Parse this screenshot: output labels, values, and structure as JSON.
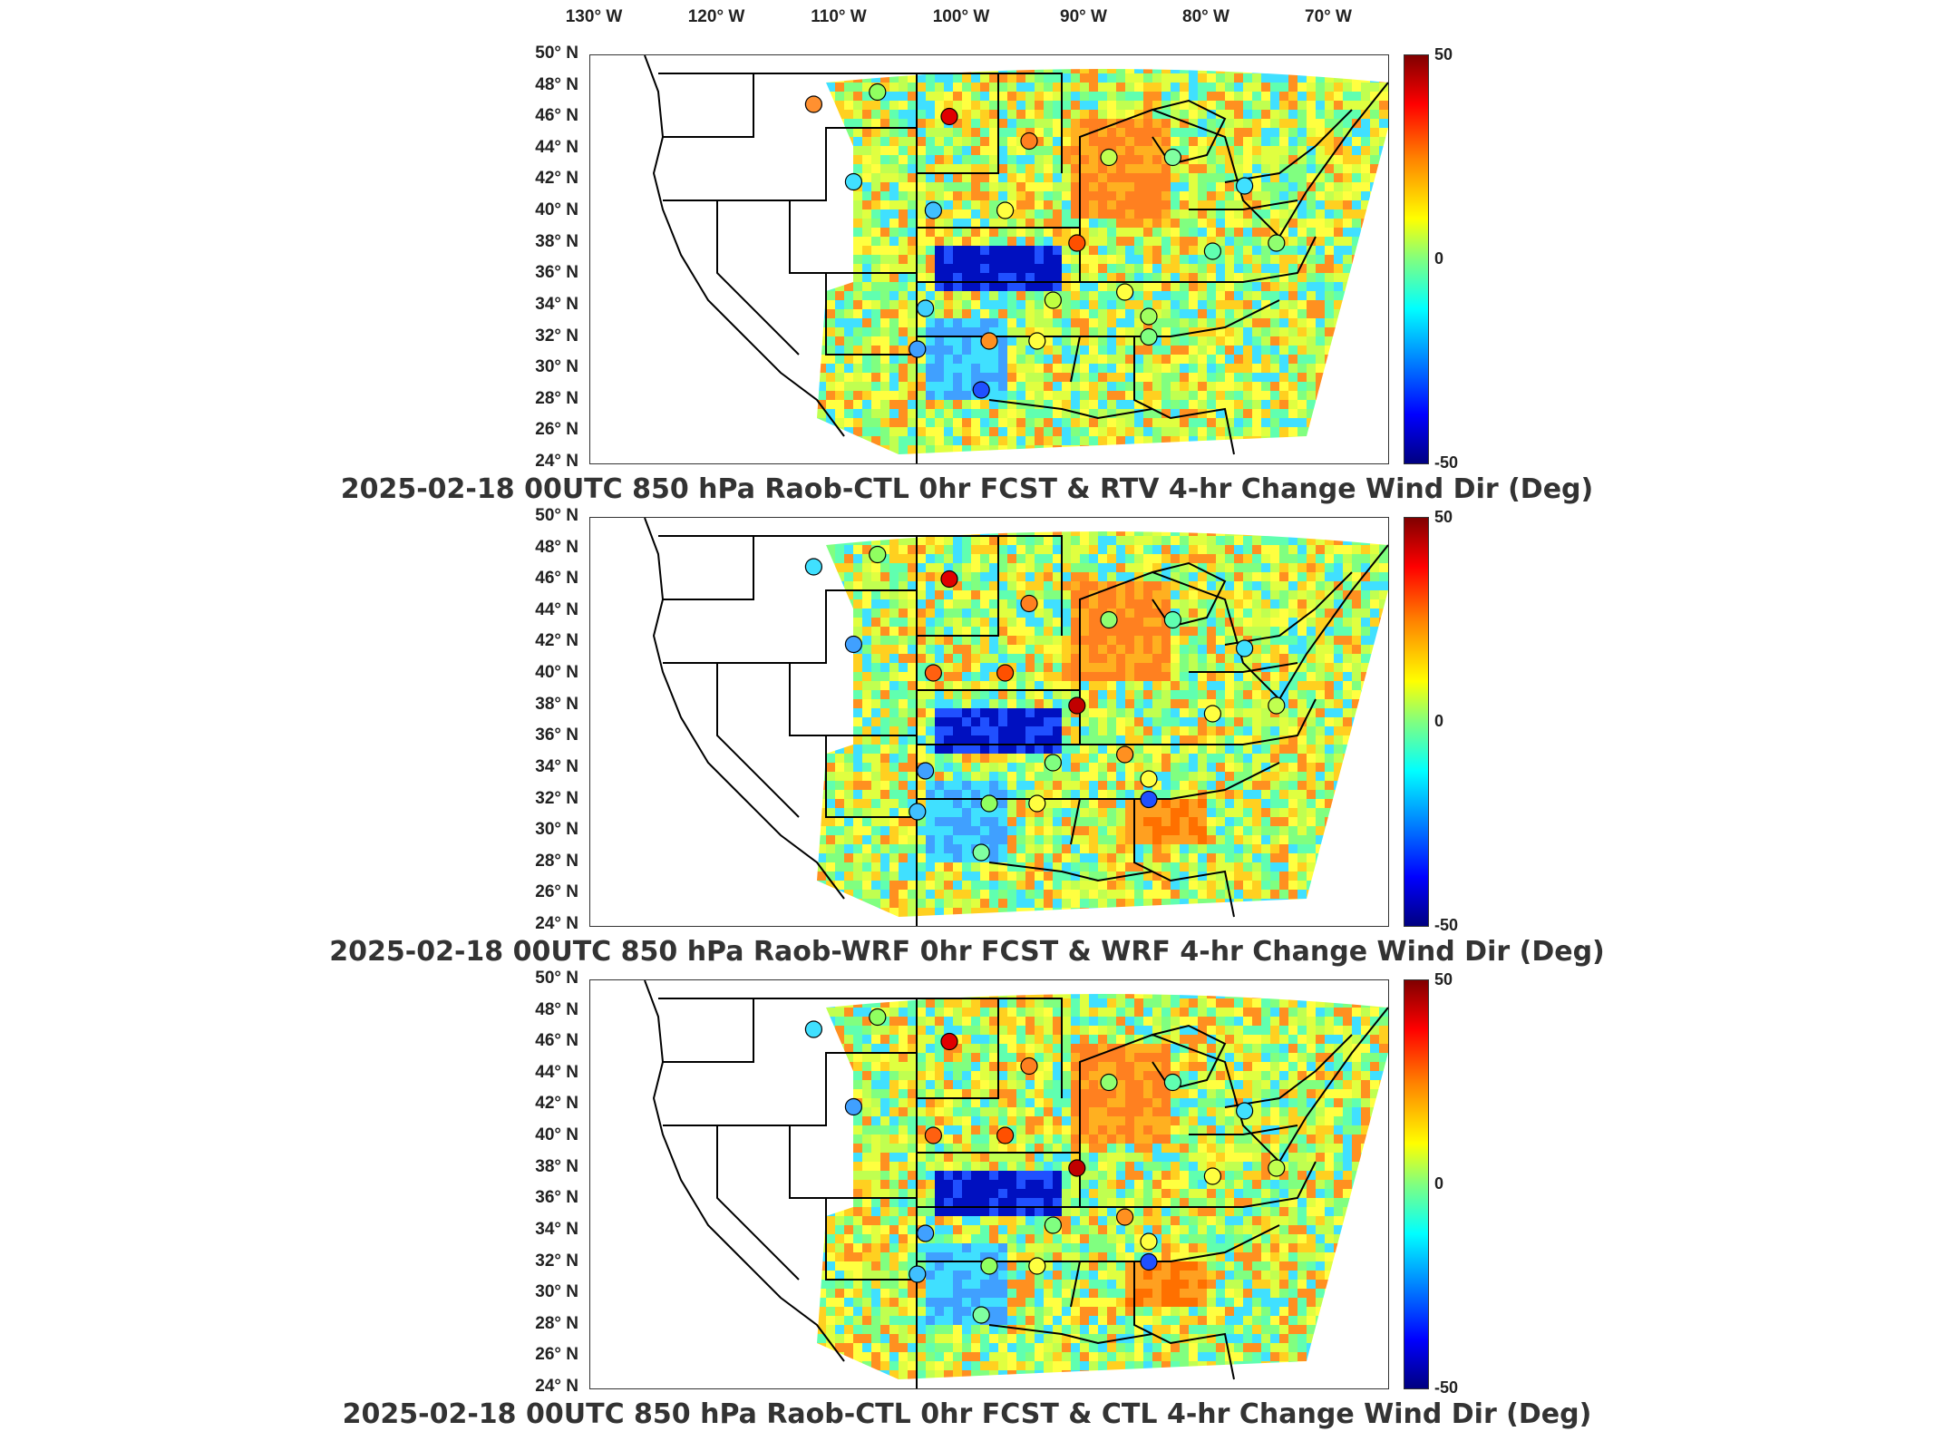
{
  "lon_labels": [
    "130° W",
    "120° W",
    "110° W",
    "100° W",
    "90° W",
    "80° W",
    "70° W"
  ],
  "lat_labels": [
    "50° N",
    "48° N",
    "46° N",
    "44° N",
    "42° N",
    "40° N",
    "38° N",
    "36° N",
    "34° N",
    "32° N",
    "30° N",
    "28° N",
    "26° N",
    "24° N"
  ],
  "colorbar": {
    "max": "50",
    "mid": "0",
    "min": "-50",
    "colormap": [
      "#800000",
      "#ff0000",
      "#ff8000",
      "#ffff00",
      "#80ff80",
      "#00ffff",
      "#0080ff",
      "#0000ff",
      "#000080"
    ]
  },
  "panels": [
    {
      "title": "2025-02-18 00UTC 850 hPa Raob-CTL 0hr FCST & RTV 4-hr Change Wind Dir (Deg)"
    },
    {
      "title": "2025-02-18 00UTC 850 hPa Raob-WRF 0hr FCST & WRF 4-hr Change Wind Dir (Deg)"
    },
    {
      "title": "2025-02-18 00UTC 850 hPa Raob-CTL 0hr FCST & CTL 4-hr Change Wind Dir (Deg)"
    }
  ]
}
